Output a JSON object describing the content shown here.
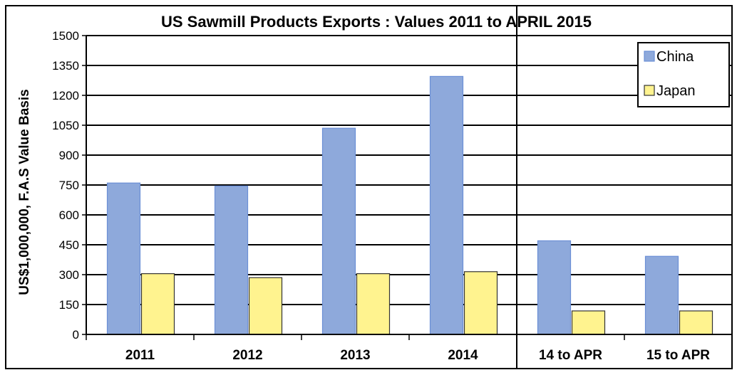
{
  "chart_data": {
    "type": "bar",
    "title": "US Sawmill Products Exports : Values 2011 to APRIL 2015",
    "ylabel": "US$1,000,000,  F.A.S Value Basis",
    "xlabel": "",
    "categories": [
      "2011",
      "2012",
      "2013",
      "2014",
      "14 to APR",
      "15 to APR"
    ],
    "ylim": [
      0,
      1500
    ],
    "yticks": [
      0,
      150,
      300,
      450,
      600,
      750,
      900,
      1050,
      1200,
      1350,
      1500
    ],
    "grid": "horizontal",
    "legend_position": "top-right",
    "series": [
      {
        "name": "China",
        "color": "#8EA9DB",
        "values": [
          760,
          745,
          1035,
          1295,
          470,
          392
        ]
      },
      {
        "name": "Japan",
        "color": "#FFF38F",
        "values": [
          305,
          285,
          305,
          315,
          118,
          118
        ]
      }
    ]
  }
}
